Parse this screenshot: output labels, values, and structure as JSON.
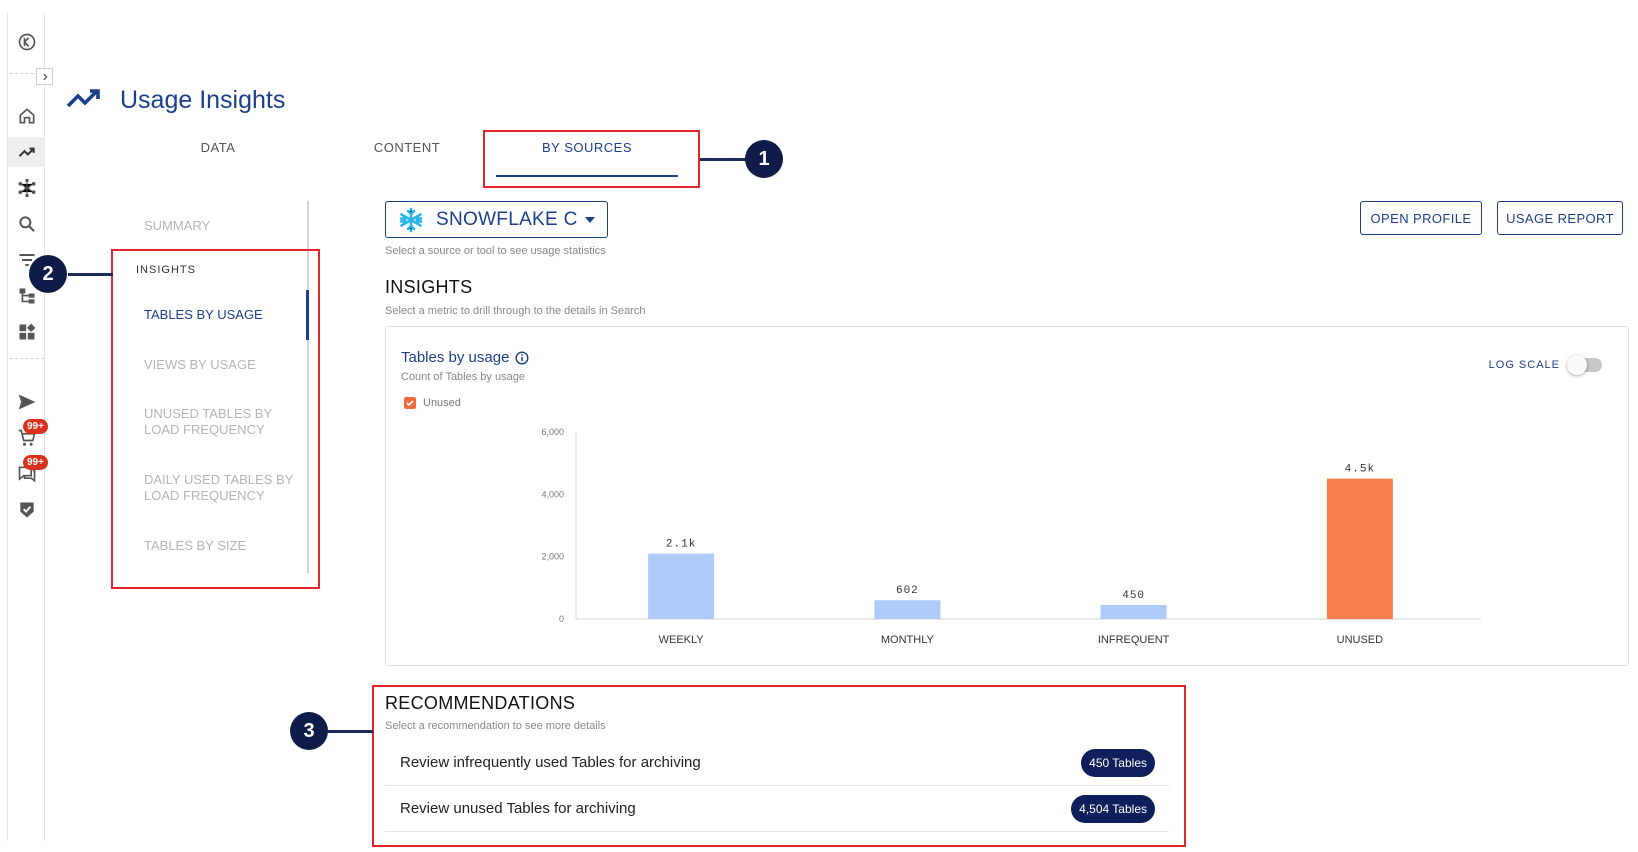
{
  "app": {
    "title": "Usage Insights",
    "badges": {
      "cart": "99+",
      "messages": "99+"
    }
  },
  "tabs": [
    {
      "label": "DATA",
      "active": false
    },
    {
      "label": "CONTENT",
      "active": false
    },
    {
      "label": "BY SOURCES",
      "active": true
    }
  ],
  "submenu": {
    "summary": "SUMMARY",
    "heading": "INSIGHTS",
    "items": [
      {
        "label": "TABLES BY USAGE",
        "active": true
      },
      {
        "label": "VIEWS BY USAGE",
        "active": false
      },
      {
        "label": "UNUSED TABLES BY LOAD FREQUENCY",
        "active": false
      },
      {
        "label": "DAILY USED TABLES BY LOAD FREQUENCY",
        "active": false
      },
      {
        "label": "TABLES BY SIZE",
        "active": false
      }
    ]
  },
  "source": {
    "selected": "SNOWFLAKE C",
    "hint": "Select a source or tool to see usage statistics"
  },
  "actions": {
    "open_profile": "OPEN PROFILE",
    "usage_report": "USAGE REPORT"
  },
  "insights": {
    "title": "INSIGHTS",
    "hint": "Select a metric to drill through to the details in Search"
  },
  "chart_card": {
    "title": "Tables by usage",
    "subtitle": "Count of Tables by usage",
    "log_scale_label": "LOG SCALE",
    "log_scale_on": false,
    "legend_label": "Unused"
  },
  "chart_data": {
    "type": "bar",
    "categories": [
      "WEEKLY",
      "MONTHLY",
      "INFREQUENT",
      "UNUSED"
    ],
    "values": [
      2100,
      602,
      450,
      4504
    ],
    "data_labels": [
      "2.1k",
      "602",
      "450",
      "4.5k"
    ],
    "colors": [
      "#aecbfa",
      "#aecbfa",
      "#aecbfa",
      "#f97e4e"
    ],
    "y_ticks": [
      "0",
      "2,000",
      "4,000",
      "6,000"
    ],
    "ylim": [
      0,
      6000
    ],
    "title": "Tables by usage",
    "xlabel": "",
    "ylabel": ""
  },
  "recommendations": {
    "title": "RECOMMENDATIONS",
    "hint": "Select a recommendation to see more details",
    "items": [
      {
        "label": "Review infrequently used Tables for archiving",
        "count": "450 Tables"
      },
      {
        "label": "Review unused Tables for archiving",
        "count": "4,504 Tables"
      }
    ]
  },
  "callouts": [
    "1",
    "2",
    "3"
  ],
  "colors": {
    "primary": "#1b3f8b",
    "callout_red": "#e1262c",
    "callout_navy": "#0f1c4a",
    "badge_red": "#d9301c"
  },
  "icons": [
    "back-circle-icon",
    "expand-chevron-icon",
    "home-icon",
    "trending-up-icon",
    "network-icon",
    "search-icon",
    "filter-icon",
    "hierarchy-icon",
    "dashboard-icon",
    "send-icon",
    "cart-icon",
    "messages-icon",
    "verified-shield-icon",
    "snowflake-icon",
    "info-icon",
    "checkbox-checked-icon",
    "dropdown-caret-icon"
  ]
}
